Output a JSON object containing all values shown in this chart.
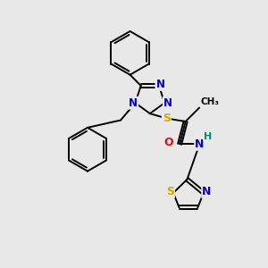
{
  "background_color": "#e8e8e8",
  "atom_colors": {
    "C": "#000000",
    "N": "#0000cc",
    "S": "#ccaa00",
    "O": "#ff0000",
    "H": "#008888"
  },
  "bond_color": "#000000",
  "bond_width": 1.4,
  "figsize": [
    3.0,
    3.0
  ],
  "dpi": 100
}
